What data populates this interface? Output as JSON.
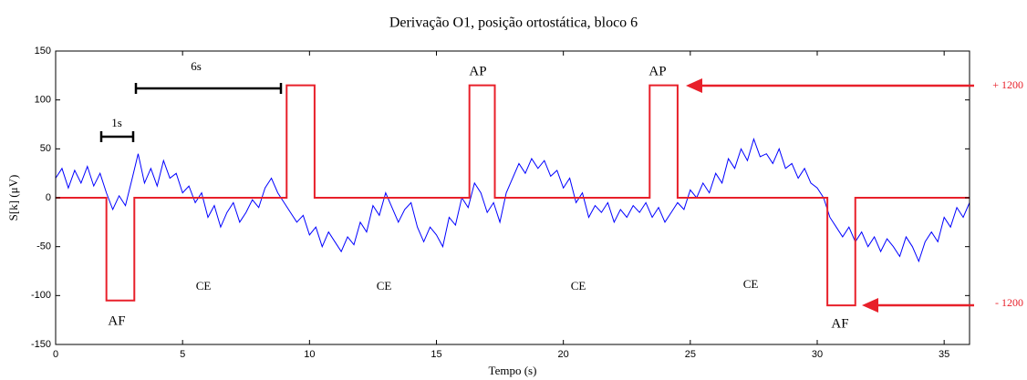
{
  "chart_data": {
    "type": "line",
    "title": "Derivação O1, posição ortostática, bloco 6",
    "xlabel": "Tempo (s)",
    "ylabel": "S[k] (μV)",
    "xlim": [
      0,
      36
    ],
    "ylim": [
      -150,
      150
    ],
    "xticks": [
      0,
      5,
      10,
      15,
      20,
      25,
      30,
      35
    ],
    "yticks": [
      -150,
      -100,
      -50,
      0,
      50,
      100,
      150
    ],
    "grid": false,
    "series": [
      {
        "color": "#0000ff",
        "x": [
          0,
          0.25,
          0.5,
          0.75,
          1,
          1.25,
          1.5,
          1.75,
          2,
          2.25,
          2.5,
          2.75,
          3,
          3.25,
          3.5,
          3.75,
          4,
          4.25,
          4.5,
          4.75,
          5,
          5.25,
          5.5,
          5.75,
          6,
          6.25,
          6.5,
          6.75,
          7,
          7.25,
          7.5,
          7.75,
          8,
          8.25,
          8.5,
          8.75,
          9,
          9.25,
          9.5,
          9.75,
          10,
          10.25,
          10.5,
          10.75,
          11,
          11.25,
          11.5,
          11.75,
          12,
          12.25,
          12.5,
          12.75,
          13,
          13.25,
          13.5,
          13.75,
          14,
          14.25,
          14.5,
          14.75,
          15,
          15.25,
          15.5,
          15.75,
          16,
          16.25,
          16.5,
          16.75,
          17,
          17.25,
          17.5,
          17.75,
          18,
          18.25,
          18.5,
          18.75,
          19,
          19.25,
          19.5,
          19.75,
          20,
          20.25,
          20.5,
          20.75,
          21,
          21.25,
          21.5,
          21.75,
          22,
          22.25,
          22.5,
          22.75,
          23,
          23.25,
          23.5,
          23.75,
          24,
          24.25,
          24.5,
          24.75,
          25,
          25.25,
          25.5,
          25.75,
          26,
          26.25,
          26.5,
          26.75,
          27,
          27.25,
          27.5,
          27.75,
          28,
          28.25,
          28.5,
          28.75,
          29,
          29.25,
          29.5,
          29.75,
          30,
          30.25,
          30.5,
          30.75,
          31,
          31.25,
          31.5,
          31.75,
          32,
          32.25,
          32.5,
          32.75,
          33,
          33.25,
          33.5,
          33.75,
          34,
          34.25,
          34.5,
          34.75,
          35,
          35.25,
          35.5,
          35.75,
          36
        ],
        "values": [
          20,
          30,
          10,
          28,
          15,
          32,
          12,
          25,
          5,
          -12,
          2,
          -8,
          18,
          45,
          15,
          30,
          12,
          38,
          20,
          25,
          5,
          12,
          -5,
          5,
          -20,
          -8,
          -30,
          -15,
          -5,
          -25,
          -15,
          -2,
          -10,
          10,
          20,
          5,
          -5,
          -15,
          -25,
          -18,
          -38,
          -30,
          -50,
          -35,
          -45,
          -55,
          -40,
          -48,
          -25,
          -35,
          -8,
          -18,
          5,
          -10,
          -25,
          -12,
          -5,
          -30,
          -45,
          -30,
          -38,
          -50,
          -20,
          -28,
          0,
          -10,
          15,
          5,
          -15,
          -5,
          -25,
          5,
          20,
          35,
          25,
          40,
          30,
          38,
          22,
          28,
          10,
          20,
          -5,
          5,
          -20,
          -8,
          -15,
          -5,
          -25,
          -12,
          -20,
          -8,
          -15,
          -5,
          -20,
          -10,
          -25,
          -15,
          -5,
          -12,
          8,
          0,
          15,
          5,
          25,
          15,
          40,
          30,
          50,
          38,
          60,
          42,
          45,
          35,
          50,
          30,
          35,
          20,
          30,
          15,
          10,
          0,
          -20,
          -30,
          -40,
          -30,
          -45,
          -35,
          -50,
          -40,
          -55,
          -42,
          -50,
          -60,
          -40,
          -50,
          -65,
          -45,
          -35,
          -45,
          -20,
          -30,
          -10,
          -20,
          -5
        ]
      },
      {
        "color": "#e8202a",
        "x": [
          0,
          2,
          2,
          3.1,
          3.1,
          9.1,
          9.1,
          10.2,
          10.2,
          16.3,
          16.3,
          17.3,
          17.3,
          23.4,
          23.4,
          24.5,
          24.5,
          30.4,
          30.4,
          31.5,
          31.5,
          36
        ],
        "values": [
          0,
          0,
          -105,
          -105,
          0,
          0,
          115,
          115,
          0,
          0,
          115,
          115,
          0,
          0,
          115,
          115,
          0,
          0,
          -110,
          -110,
          0,
          0
        ]
      }
    ],
    "annotations": [
      {
        "text": "AF"
      },
      {
        "text": "CE"
      },
      {
        "text": "CE"
      },
      {
        "text": "CE"
      },
      {
        "text": "CE"
      },
      {
        "text": "AP"
      },
      {
        "text": "AP"
      },
      {
        "text": "AF"
      },
      {
        "text": "1s"
      },
      {
        "text": "6s"
      },
      {
        "text": "+ 1200"
      },
      {
        "text": "- 1200"
      }
    ]
  }
}
